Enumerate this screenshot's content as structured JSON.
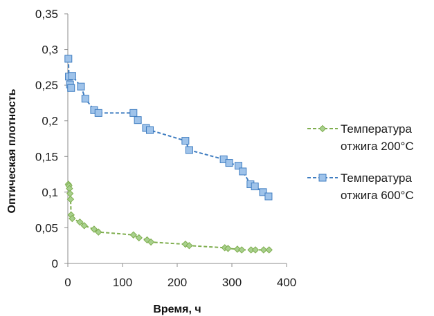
{
  "chart_data": {
    "type": "line",
    "title": "",
    "xlabel": "Время, ч",
    "ylabel": "Оптическая плотность",
    "xlim": [
      0,
      400
    ],
    "ylim": [
      0,
      0.35
    ],
    "xticks": [
      "0",
      "100",
      "200",
      "300",
      "400"
    ],
    "yticks": [
      "0",
      "0,05",
      "0,1",
      "0,15",
      "0,2",
      "0,25",
      "0,3",
      "0,35"
    ],
    "grid": false,
    "legend_position": "right",
    "series": [
      {
        "name": "Температура отжига 200°C",
        "legend_lines": [
          "Температура",
          "отжига 200°C"
        ],
        "color": "#7fae4f",
        "marker_fill": "#a8d08d",
        "marker": "diamond",
        "line_style": "dashed",
        "x": [
          1,
          2,
          3,
          4,
          5,
          6,
          8,
          22,
          30,
          48,
          56,
          120,
          130,
          145,
          152,
          215,
          222,
          287,
          293,
          310,
          318,
          335,
          343,
          358,
          368
        ],
        "y": [
          0.111,
          0.109,
          0.105,
          0.098,
          0.09,
          0.068,
          0.063,
          0.058,
          0.053,
          0.048,
          0.044,
          0.04,
          0.036,
          0.033,
          0.03,
          0.027,
          0.025,
          0.022,
          0.021,
          0.02,
          0.019,
          0.019,
          0.019,
          0.019,
          0.019
        ]
      },
      {
        "name": "Температура отжига 600°C",
        "legend_lines": [
          "Температура",
          "отжига 600°C"
        ],
        "color": "#3f7dc1",
        "marker_fill": "#9fc3ea",
        "marker": "square",
        "line_style": "dashed",
        "x": [
          1,
          2,
          4,
          6,
          8,
          24,
          32,
          48,
          56,
          120,
          128,
          143,
          150,
          215,
          222,
          285,
          295,
          312,
          320,
          334,
          342,
          357,
          367
        ],
        "y": [
          0.287,
          0.262,
          0.251,
          0.246,
          0.263,
          0.248,
          0.231,
          0.215,
          0.211,
          0.211,
          0.201,
          0.19,
          0.187,
          0.172,
          0.159,
          0.146,
          0.141,
          0.137,
          0.129,
          0.111,
          0.108,
          0.1,
          0.094
        ]
      }
    ]
  }
}
